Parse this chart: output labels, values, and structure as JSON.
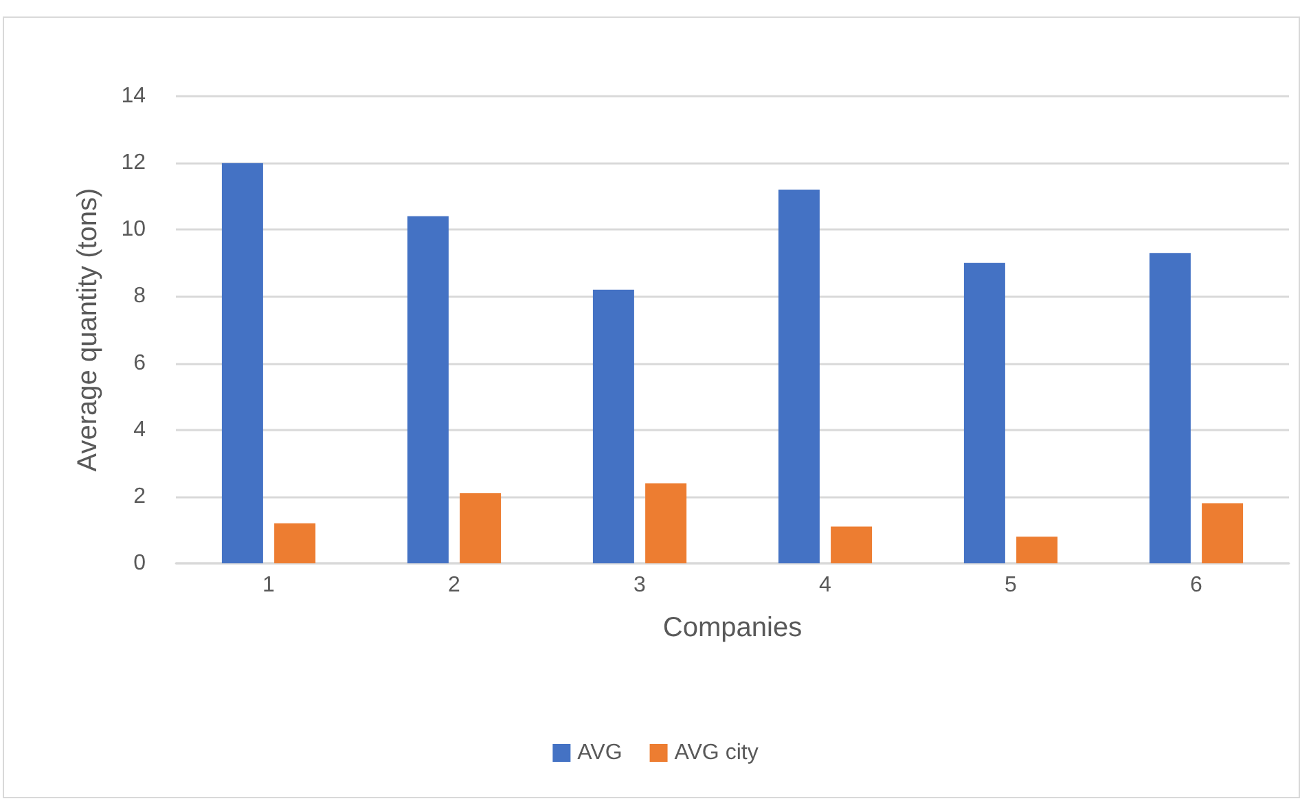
{
  "chart_data": {
    "type": "bar",
    "xlabel": "Companies",
    "ylabel": "Average quantity (tons)",
    "categories": [
      "1",
      "2",
      "3",
      "4",
      "5",
      "6"
    ],
    "series": [
      {
        "name": "AVG",
        "color": "#4472c4",
        "values": [
          12,
          10.4,
          8.2,
          11.2,
          9.0,
          9.3
        ]
      },
      {
        "name": "AVG city",
        "color": "#ed7d31",
        "values": [
          1.2,
          2.1,
          2.4,
          1.1,
          0.8,
          1.8
        ]
      }
    ],
    "ylim": [
      0,
      14
    ],
    "yticks": [
      0,
      2,
      4,
      6,
      8,
      10,
      12,
      14
    ],
    "grid": "y",
    "legend": "bottom"
  }
}
